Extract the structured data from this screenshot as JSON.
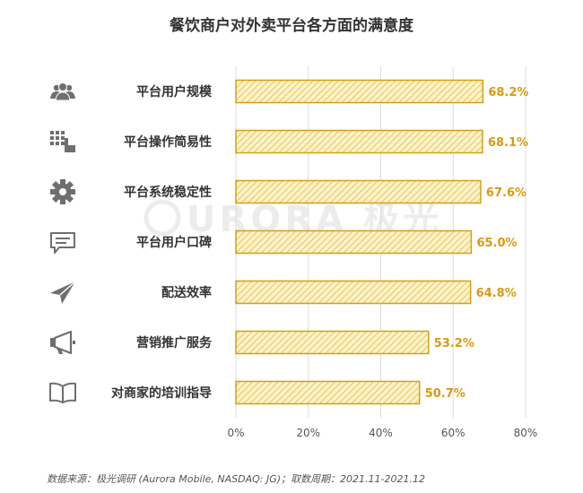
{
  "title": "餐饮商户对外卖平台各方面的满意度",
  "source": "数据来源：极光调研 (Aurora Mobile, NASDAQ: JG)；取数周期：2021.11-2021.12",
  "watermark": "URORA 极光",
  "colors": {
    "bar_fill": "#fdf3c7",
    "bar_stroke": "#d4a017",
    "hatch": "#e3b64a",
    "value_label": "#d99a0f",
    "icon": "#6f6f6f",
    "category_text": "#333333",
    "tick_text": "#555555",
    "grid": "#dddddd"
  },
  "chart_data": {
    "type": "bar",
    "orientation": "horizontal",
    "title": "餐饮商户对外卖平台各方面的满意度",
    "categories": [
      "平台用户规模",
      "平台操作简易性",
      "平台系统稳定性",
      "平台用户口碑",
      "配送效率",
      "营销推广服务",
      "对商家的培训指导"
    ],
    "icons": [
      "users-icon",
      "grid-touch-icon",
      "gear-icon",
      "message-icon",
      "paper-plane-icon",
      "megaphone-icon",
      "book-icon"
    ],
    "values": [
      68.2,
      68.1,
      67.6,
      65.0,
      64.8,
      53.2,
      50.7
    ],
    "value_labels": [
      "68.2%",
      "68.1%",
      "67.6%",
      "65.0%",
      "64.8%",
      "53.2%",
      "50.7%"
    ],
    "xlim": [
      0,
      80
    ],
    "xticks": [
      0,
      20,
      40,
      60,
      80
    ],
    "xtick_labels": [
      "0%",
      "20%",
      "40%",
      "60%",
      "80%"
    ],
    "grid": true
  }
}
